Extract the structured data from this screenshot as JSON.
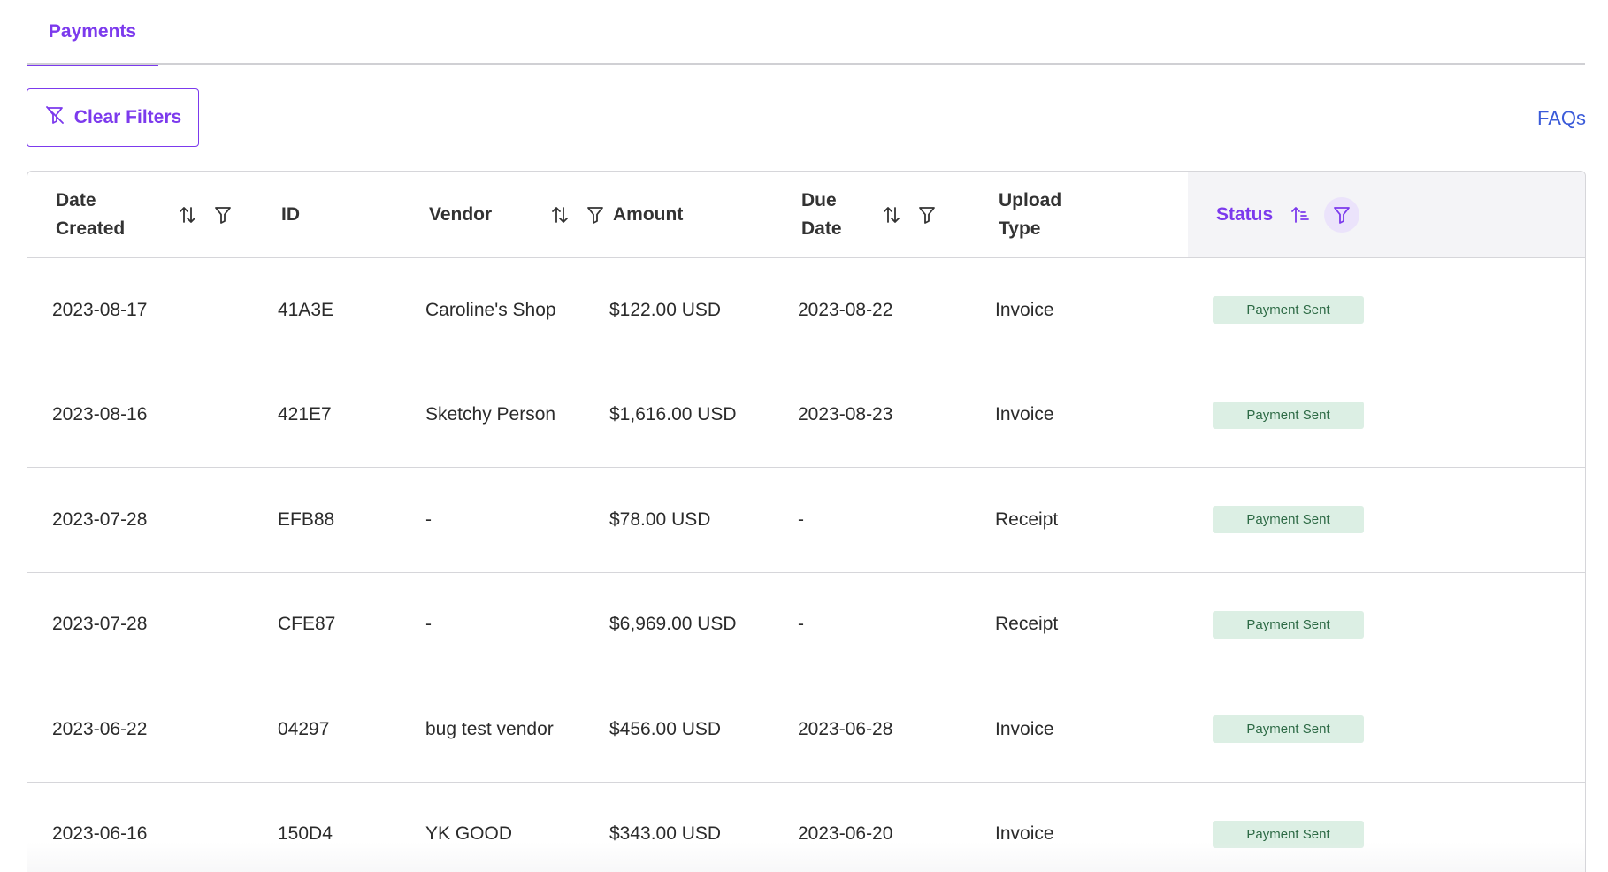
{
  "tabs": [
    {
      "label": "Payments",
      "active": true
    }
  ],
  "toolbar": {
    "clear_filters_label": "Clear Filters",
    "faqs_label": "FAQs"
  },
  "colors": {
    "accent": "#7c3aed",
    "link": "#3b5bd9",
    "badge_bg": "#dcefe4",
    "badge_text": "#2d6a45"
  },
  "table": {
    "columns": [
      {
        "label": "Date\nCreated",
        "sort_icon": "sort-arrows-icon",
        "filter_icon": "filter-icon"
      },
      {
        "label": "ID",
        "sort_icon": "sort-arrows-icon",
        "filter_icon": "filter-icon"
      },
      {
        "label": "Vendor",
        "sort_icon": "sort-arrows-icon",
        "filter_icon": "filter-icon"
      },
      {
        "label": "Amount",
        "sort_icon": "sort-arrows-icon",
        "filter_icon": "filter-icon"
      },
      {
        "label": "Due\nDate",
        "sort_icon": "sort-arrows-icon",
        "filter_icon": "filter-icon"
      },
      {
        "label": "Upload\nType",
        "sort_icon": "sort-arrows-icon",
        "filter_icon": "filter-icon"
      },
      {
        "label": "Status",
        "sort_icon": "sort-ascending-icon",
        "filter_icon": "filter-icon",
        "active": true
      }
    ],
    "rows": [
      {
        "date_created": "2023-08-17",
        "id": "41A3E",
        "vendor": "Caroline's Shop",
        "amount": "$122.00 USD",
        "due_date": "2023-08-22",
        "upload_type": "Invoice",
        "status": "Payment Sent"
      },
      {
        "date_created": "2023-08-16",
        "id": "421E7",
        "vendor": "Sketchy Person",
        "amount": "$1,616.00 USD",
        "due_date": "2023-08-23",
        "upload_type": "Invoice",
        "status": "Payment Sent"
      },
      {
        "date_created": "2023-07-28",
        "id": "EFB88",
        "vendor": "-",
        "amount": "$78.00 USD",
        "due_date": "-",
        "upload_type": "Receipt",
        "status": "Payment Sent"
      },
      {
        "date_created": "2023-07-28",
        "id": "CFE87",
        "vendor": "-",
        "amount": "$6,969.00 USD",
        "due_date": "-",
        "upload_type": "Receipt",
        "status": "Payment Sent"
      },
      {
        "date_created": "2023-06-22",
        "id": "04297",
        "vendor": "bug test vendor",
        "amount": "$456.00 USD",
        "due_date": "2023-06-28",
        "upload_type": "Invoice",
        "status": "Payment Sent"
      },
      {
        "date_created": "2023-06-16",
        "id": "150D4",
        "vendor": "YK GOOD",
        "amount": "$343.00 USD",
        "due_date": "2023-06-20",
        "upload_type": "Invoice",
        "status": "Payment Sent"
      }
    ]
  }
}
